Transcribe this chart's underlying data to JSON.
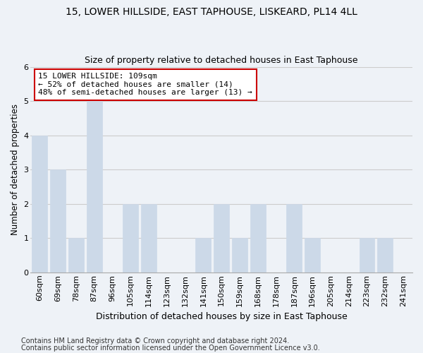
{
  "title": "15, LOWER HILLSIDE, EAST TAPHOUSE, LISKEARD, PL14 4LL",
  "subtitle": "Size of property relative to detached houses in East Taphouse",
  "xlabel": "Distribution of detached houses by size in East Taphouse",
  "ylabel": "Number of detached properties",
  "categories": [
    "60sqm",
    "69sqm",
    "78sqm",
    "87sqm",
    "96sqm",
    "105sqm",
    "114sqm",
    "123sqm",
    "132sqm",
    "141sqm",
    "150sqm",
    "159sqm",
    "168sqm",
    "178sqm",
    "187sqm",
    "196sqm",
    "205sqm",
    "214sqm",
    "223sqm",
    "232sqm",
    "241sqm"
  ],
  "values": [
    4,
    3,
    1,
    5,
    0,
    2,
    2,
    0,
    0,
    1,
    2,
    1,
    2,
    0,
    2,
    1,
    0,
    0,
    1,
    1,
    0
  ],
  "bar_color": "#ccd9e8",
  "ylim": [
    0,
    6
  ],
  "yticks": [
    0,
    1,
    2,
    3,
    4,
    5,
    6
  ],
  "annotation_text": "15 LOWER HILLSIDE: 109sqm\n← 52% of detached houses are smaller (14)\n48% of semi-detached houses are larger (13) →",
  "annotation_box_facecolor": "#ffffff",
  "annotation_box_edgecolor": "#cc0000",
  "footnote1": "Contains HM Land Registry data © Crown copyright and database right 2024.",
  "footnote2": "Contains public sector information licensed under the Open Government Licence v3.0.",
  "title_fontsize": 10,
  "subtitle_fontsize": 9,
  "xlabel_fontsize": 9,
  "ylabel_fontsize": 8.5,
  "tick_fontsize": 8,
  "annotation_fontsize": 8,
  "footnote_fontsize": 7,
  "grid_color": "#cccccc",
  "background_color": "#eef2f7"
}
